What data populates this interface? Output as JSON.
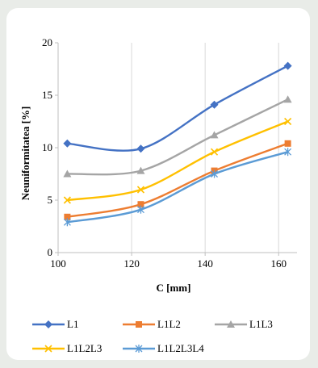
{
  "chart_data": {
    "type": "line",
    "xlabel": "C [mm]",
    "ylabel": "Neuniformitatea [%]",
    "xlim": [
      100,
      165
    ],
    "ylim": [
      0,
      20
    ],
    "x_ticks": [
      100,
      120,
      140,
      160
    ],
    "y_ticks": [
      0,
      5,
      10,
      15,
      20
    ],
    "grid": "vertical",
    "legend_position": "bottom",
    "x": [
      102.5,
      122.5,
      142.5,
      162.5
    ],
    "series": [
      {
        "name": "L1",
        "color": "#4472c4",
        "marker": "diamond",
        "values": [
          10.4,
          9.9,
          14.1,
          17.8
        ]
      },
      {
        "name": "L1L2",
        "color": "#ed7d31",
        "marker": "square",
        "values": [
          3.4,
          4.6,
          7.8,
          10.4
        ]
      },
      {
        "name": "L1L3",
        "color": "#a5a5a5",
        "marker": "triangle",
        "values": [
          7.5,
          7.8,
          11.2,
          14.6
        ]
      },
      {
        "name": "L1L2L3",
        "color": "#ffc000",
        "marker": "x",
        "values": [
          5.0,
          6.0,
          9.6,
          12.5
        ]
      },
      {
        "name": "L1L2L3L4",
        "color": "#5b9bd5",
        "marker": "star",
        "values": [
          2.9,
          4.1,
          7.5,
          9.6
        ]
      }
    ]
  }
}
